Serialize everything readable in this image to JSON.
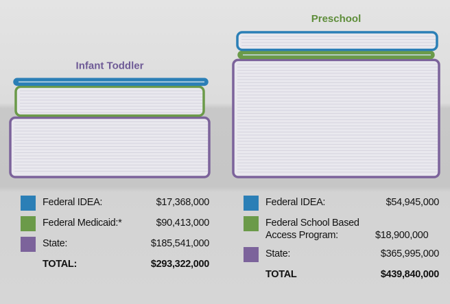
{
  "chart_data": [
    {
      "type": "bar",
      "title": "Infant Toddler",
      "title_color": "#6e5a96",
      "categories": [
        "Federal IDEA:",
        "Federal Medicaid:*",
        "State:"
      ],
      "values": [
        17368000,
        90413000,
        185541000
      ],
      "value_labels": [
        "$17,368,000",
        "$90,413,000",
        "$185,541,000"
      ],
      "colors": [
        "#2b7fb6",
        "#6b9a49",
        "#7c639b"
      ],
      "total_name": "TOTAL:",
      "total": 293322000,
      "total_label": "$293,322,000"
    },
    {
      "type": "bar",
      "title": "Preschool",
      "title_color": "#5e8d3a",
      "categories": [
        "Federal IDEA:",
        "Federal School Based Access Program:",
        "State:"
      ],
      "values": [
        54945000,
        18900000,
        365995000
      ],
      "value_labels": [
        "$54,945,000",
        "$18,900,000",
        "$365,995,000"
      ],
      "colors": [
        "#2b7fb6",
        "#6b9a49",
        "#7c639b"
      ],
      "total_name": "TOTAL",
      "total": 439840000,
      "total_label": "$439,840,000"
    }
  ]
}
